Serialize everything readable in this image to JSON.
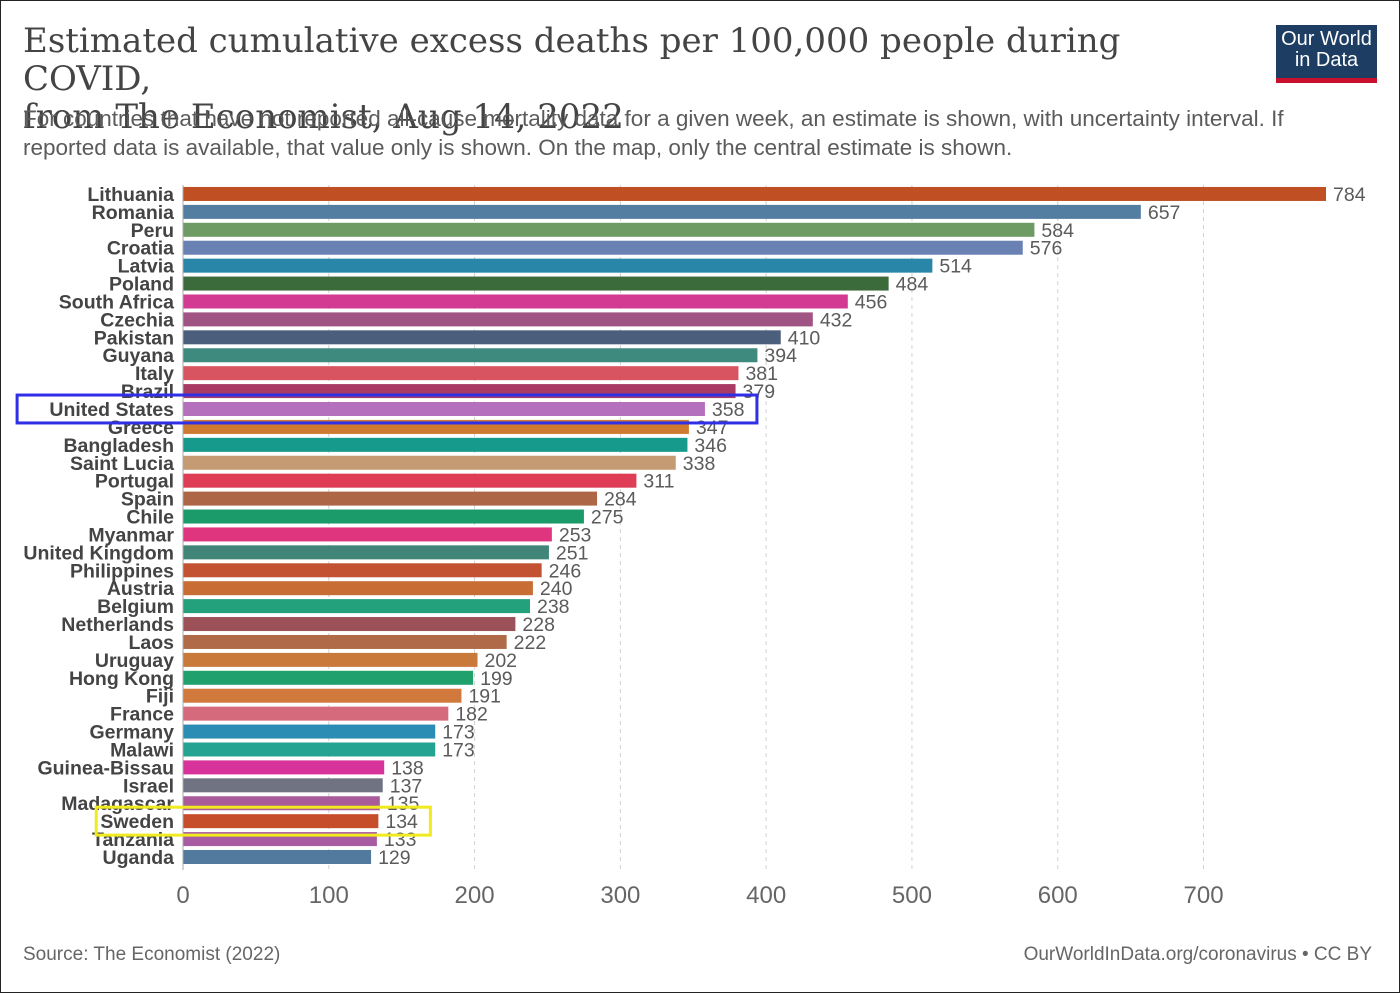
{
  "header": {
    "title_line1": "Estimated cumulative excess deaths per 100,000 people during COVID,",
    "title_line2": "from The Economist, Aug 14, 2022",
    "subtitle_line1": "For countries that have not reported all-cause mortality data for a given week, an estimate is shown, with uncertainty interval. If",
    "subtitle_line2": "reported data is available, that value only is shown. On the map, only the central estimate is shown."
  },
  "logo": {
    "line1": "Our World",
    "line2": "in Data",
    "bg_color": "#1d3d63",
    "accent_color": "#c8102e"
  },
  "footer": {
    "source": "Source: The Economist (2022)",
    "credit": "OurWorldInData.org/coronavirus • CC BY"
  },
  "highlight": [
    {
      "country": "United States",
      "color": "#2f2fe8"
    },
    {
      "country": "Sweden",
      "color": "#f0ea1e"
    }
  ],
  "chart_data": {
    "type": "bar",
    "orientation": "horizontal",
    "title": "Estimated cumulative excess deaths per 100,000 people during COVID, from The Economist, Aug 14, 2022",
    "xlim": [
      0,
      784
    ],
    "xticks": [
      0,
      100,
      200,
      300,
      400,
      500,
      600,
      700
    ],
    "grid": true,
    "categories": [
      "Lithuania",
      "Romania",
      "Peru",
      "Croatia",
      "Latvia",
      "Poland",
      "South Africa",
      "Czechia",
      "Pakistan",
      "Guyana",
      "Italy",
      "Brazil",
      "United States",
      "Greece",
      "Bangladesh",
      "Saint Lucia",
      "Portugal",
      "Spain",
      "Chile",
      "Myanmar",
      "United Kingdom",
      "Philippines",
      "Austria",
      "Belgium",
      "Netherlands",
      "Laos",
      "Uruguay",
      "Hong Kong",
      "Fiji",
      "France",
      "Germany",
      "Malawi",
      "Guinea-Bissau",
      "Israel",
      "Madagascar",
      "Sweden",
      "Tanzania",
      "Uganda"
    ],
    "values": [
      784,
      657,
      584,
      576,
      514,
      484,
      456,
      432,
      410,
      394,
      381,
      379,
      358,
      347,
      346,
      338,
      311,
      284,
      275,
      253,
      251,
      246,
      240,
      238,
      228,
      222,
      202,
      199,
      191,
      182,
      173,
      173,
      138,
      137,
      135,
      134,
      133,
      129
    ],
    "colors": [
      "#c05023",
      "#547ea1",
      "#6e9b64",
      "#6a82b3",
      "#2a86a8",
      "#3c6b3b",
      "#d33b93",
      "#a05483",
      "#4b5f7d",
      "#3f8a7f",
      "#d95461",
      "#a83a63",
      "#b46fbd",
      "#ce7b31",
      "#169a8c",
      "#c49b72",
      "#de3d55",
      "#ad6747",
      "#1b9a6a",
      "#de357e",
      "#418579",
      "#c25232",
      "#c86d33",
      "#23a17d",
      "#9c5159",
      "#b06a48",
      "#c9793a",
      "#20a06d",
      "#d1793c",
      "#d66a7d",
      "#2c8db4",
      "#24a292",
      "#d8339a",
      "#707482",
      "#a85a99",
      "#c64e2a",
      "#a85ca2",
      "#52799e"
    ]
  }
}
